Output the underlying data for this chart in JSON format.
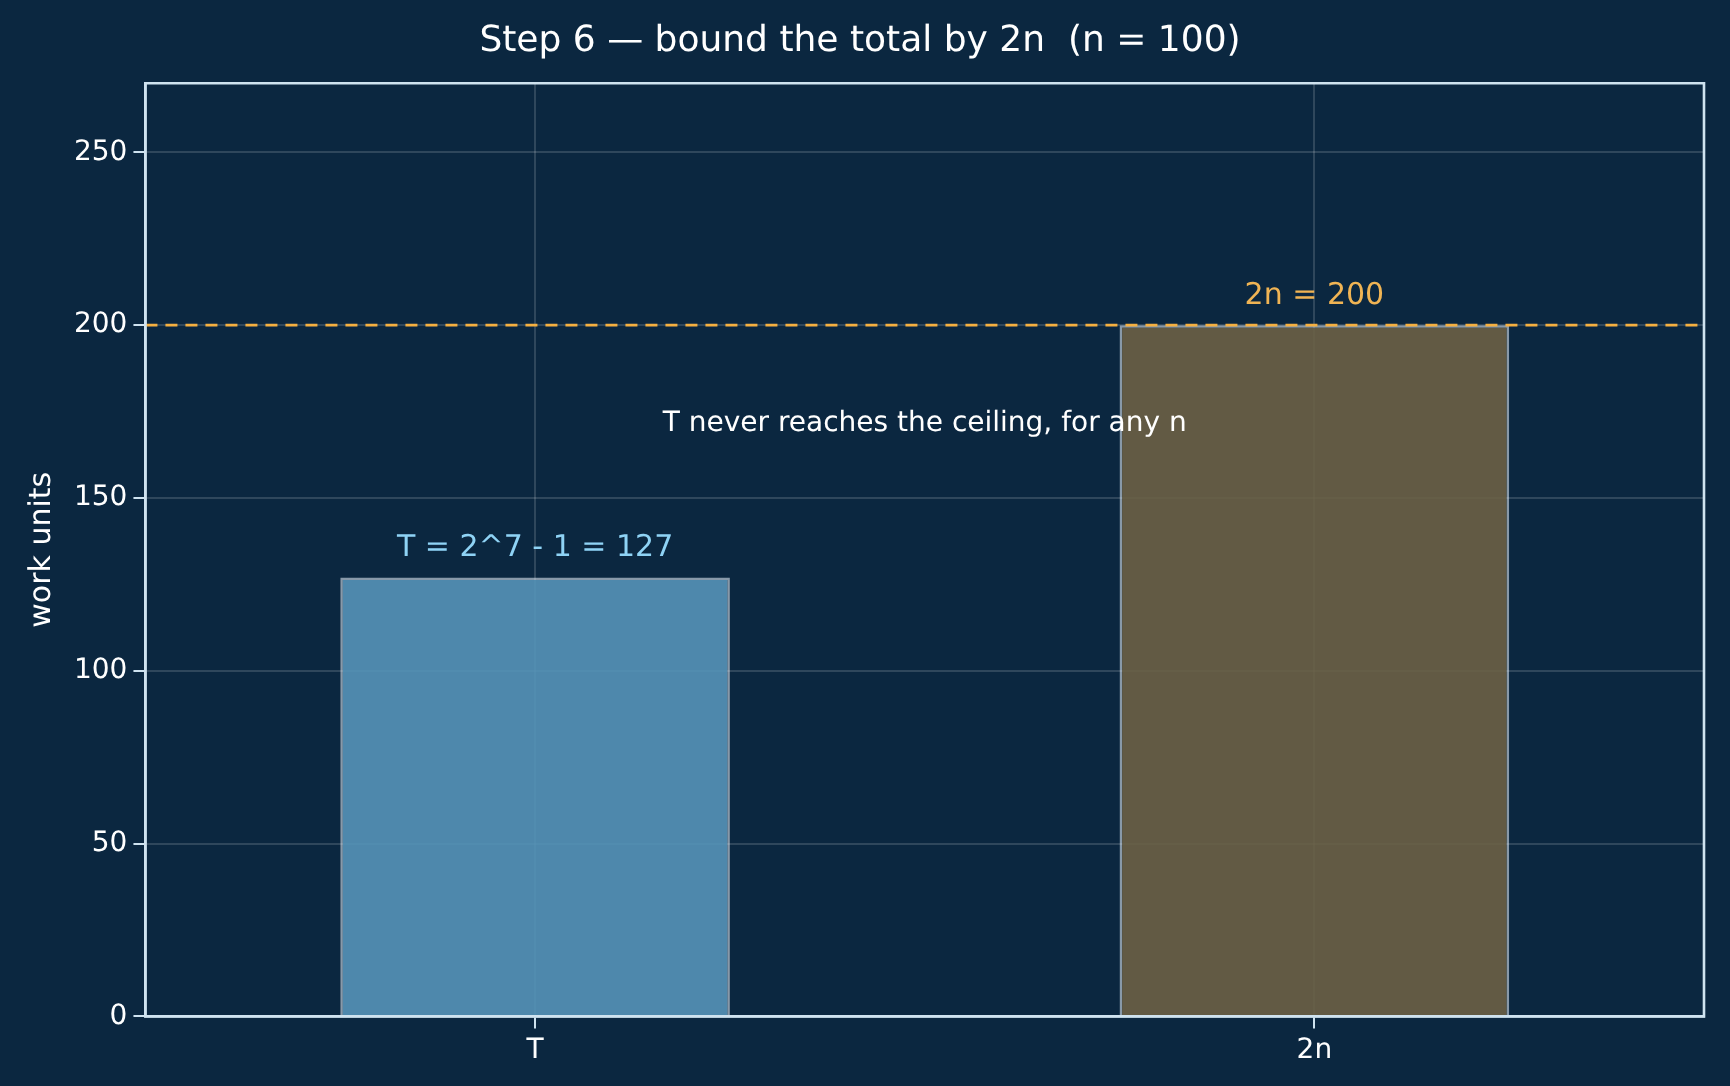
{
  "chart_data": {
    "type": "bar",
    "title": "Step 6 — bound the total by 2n  (n = 100)",
    "ylabel": "work units",
    "categories": [
      "T",
      "2n"
    ],
    "values": [
      127,
      200
    ],
    "colors": [
      "#5593b8",
      "#6b6145"
    ],
    "value_labels": [
      "T = 2^7 - 1 = 127",
      "2n = 200"
    ],
    "ylim": [
      0,
      270
    ],
    "yticks": [
      0,
      50,
      100,
      150,
      200,
      250
    ],
    "grid": true,
    "ref_lines": [
      {
        "axis": "y",
        "value": 200,
        "color": "#f5b041",
        "line_style": "dashed"
      }
    ],
    "annotations": [
      "T never reaches the ceiling, for any n"
    ]
  }
}
